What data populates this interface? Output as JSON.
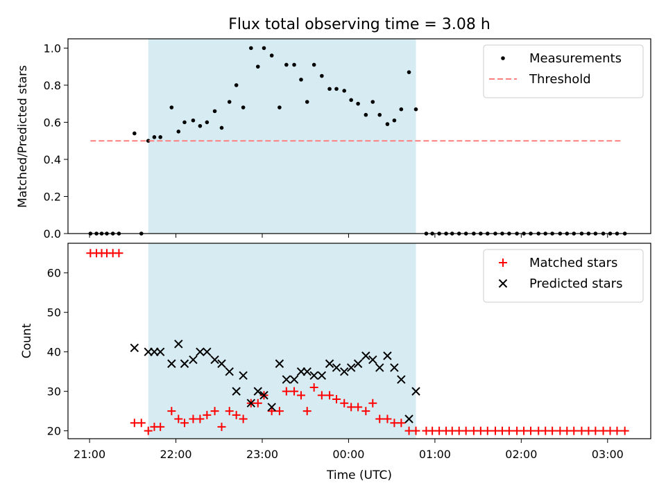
{
  "chart_data": {
    "title": "Flux total observing time = 3.08 h",
    "xlabel": "Time (UTC)",
    "x_unit": "hours",
    "xlim": [
      20.75,
      27.5
    ],
    "xticks": [
      {
        "value": 21,
        "label": "21:00"
      },
      {
        "value": 22,
        "label": "22:00"
      },
      {
        "value": 23,
        "label": "23:00"
      },
      {
        "value": 24,
        "label": "00:00"
      },
      {
        "value": 25,
        "label": "01:00"
      },
      {
        "value": 26,
        "label": "02:00"
      },
      {
        "value": 27,
        "label": "03:00"
      }
    ],
    "observing_window": {
      "start": 21.68,
      "end": 24.78,
      "color": "#add8e6"
    },
    "panels": [
      {
        "type": "scatter",
        "ylabel": "Matched/Predicted stars",
        "ylim": [
          0,
          1.05
        ],
        "yticks": [
          {
            "value": 0,
            "label": "0.0"
          },
          {
            "value": 0.2,
            "label": "0.2"
          },
          {
            "value": 0.4,
            "label": "0.4"
          },
          {
            "value": 0.6,
            "label": "0.6"
          },
          {
            "value": 0.8,
            "label": "0.8"
          },
          {
            "value": 1.0,
            "label": "1.0"
          }
        ],
        "legend_position": "top-right",
        "series": [
          {
            "name": "Measurements",
            "marker": "dot",
            "color": "#000000",
            "x": [
              21.01,
              21.08,
              21.14,
              21.2,
              21.27,
              21.34,
              21.52,
              21.6,
              21.68,
              21.75,
              21.82,
              21.95,
              22.03,
              22.1,
              22.2,
              22.28,
              22.36,
              22.45,
              22.53,
              22.62,
              22.7,
              22.78,
              22.87,
              22.95,
              23.02,
              23.11,
              23.2,
              23.28,
              23.37,
              23.45,
              23.52,
              23.6,
              23.69,
              23.78,
              23.86,
              23.95,
              24.03,
              24.11,
              24.2,
              24.28,
              24.36,
              24.45,
              24.53,
              24.61,
              24.7,
              24.78,
              24.9,
              24.97,
              25.05,
              25.13,
              25.2,
              25.28,
              25.36,
              25.45,
              25.53,
              25.61,
              25.7,
              25.78,
              25.86,
              25.95,
              26.03,
              26.11,
              26.2,
              26.28,
              26.36,
              26.45,
              26.53,
              26.61,
              26.7,
              26.78,
              26.86,
              26.95,
              27.03,
              27.11,
              27.2
            ],
            "y": [
              0,
              0,
              0,
              0,
              0,
              0,
              0.54,
              0,
              0.5,
              0.52,
              0.52,
              0.68,
              0.55,
              0.6,
              0.61,
              0.58,
              0.6,
              0.66,
              0.57,
              0.71,
              0.8,
              0.68,
              1.0,
              0.9,
              1.0,
              0.96,
              0.68,
              0.91,
              0.91,
              0.83,
              0.71,
              0.91,
              0.85,
              0.78,
              0.78,
              0.77,
              0.72,
              0.7,
              0.64,
              0.71,
              0.64,
              0.59,
              0.61,
              0.67,
              0.87,
              0.67,
              0,
              0,
              0,
              0,
              0,
              0,
              0,
              0,
              0,
              0,
              0,
              0,
              0,
              0,
              0,
              0,
              0,
              0,
              0,
              0,
              0,
              0,
              0,
              0,
              0,
              0,
              0,
              0,
              0
            ]
          },
          {
            "name": "Threshold",
            "marker": "dashed-line",
            "color": "#ff7f7f",
            "x": [
              21.01,
              27.17
            ],
            "y": [
              0.5,
              0.5
            ]
          }
        ]
      },
      {
        "type": "scatter",
        "ylabel": "Count",
        "ylim": [
          18,
          67.5
        ],
        "yticks": [
          {
            "value": 20,
            "label": "20"
          },
          {
            "value": 30,
            "label": "30"
          },
          {
            "value": 40,
            "label": "40"
          },
          {
            "value": 50,
            "label": "50"
          },
          {
            "value": 60,
            "label": "60"
          }
        ],
        "legend_position": "top-right",
        "series": [
          {
            "name": "Matched stars",
            "marker": "plus",
            "color": "#ff0000",
            "x": [
              21.01,
              21.08,
              21.14,
              21.2,
              21.27,
              21.34,
              21.52,
              21.6,
              21.68,
              21.75,
              21.82,
              21.95,
              22.03,
              22.1,
              22.2,
              22.28,
              22.36,
              22.45,
              22.53,
              22.62,
              22.7,
              22.78,
              22.87,
              22.95,
              23.02,
              23.11,
              23.2,
              23.28,
              23.37,
              23.45,
              23.52,
              23.6,
              23.69,
              23.78,
              23.86,
              23.95,
              24.03,
              24.11,
              24.2,
              24.28,
              24.36,
              24.45,
              24.53,
              24.61,
              24.7,
              24.78,
              24.9,
              24.97,
              25.05,
              25.13,
              25.2,
              25.28,
              25.36,
              25.45,
              25.53,
              25.61,
              25.7,
              25.78,
              25.86,
              25.95,
              26.03,
              26.11,
              26.2,
              26.28,
              26.36,
              26.45,
              26.53,
              26.61,
              26.7,
              26.78,
              26.86,
              26.95,
              27.03,
              27.11,
              27.2
            ],
            "y": [
              65,
              65,
              65,
              65,
              65,
              65,
              22,
              22,
              20,
              21,
              21,
              25,
              23,
              22,
              23,
              23,
              24,
              25,
              21,
              25,
              24,
              23,
              27,
              27,
              29,
              25,
              25,
              30,
              30,
              29,
              25,
              31,
              29,
              29,
              28,
              27,
              26,
              26,
              25,
              27,
              23,
              23,
              22,
              22,
              20,
              20,
              20,
              20,
              20,
              20,
              20,
              20,
              20,
              20,
              20,
              20,
              20,
              20,
              20,
              20,
              20,
              20,
              20,
              20,
              20,
              20,
              20,
              20,
              20,
              20,
              20,
              20,
              20,
              20,
              20
            ]
          },
          {
            "name": "Predicted stars",
            "marker": "x",
            "color": "#000000",
            "x": [
              21.52,
              21.68,
              21.75,
              21.82,
              21.95,
              22.03,
              22.1,
              22.2,
              22.28,
              22.36,
              22.45,
              22.53,
              22.62,
              22.7,
              22.78,
              22.87,
              22.95,
              23.02,
              23.11,
              23.2,
              23.28,
              23.37,
              23.45,
              23.52,
              23.6,
              23.69,
              23.78,
              23.86,
              23.95,
              24.03,
              24.11,
              24.2,
              24.28,
              24.36,
              24.45,
              24.53,
              24.61,
              24.7,
              24.78
            ],
            "y": [
              41,
              40,
              40,
              40,
              37,
              42,
              37,
              38,
              40,
              40,
              38,
              37,
              35,
              30,
              34,
              27,
              30,
              29,
              26,
              37,
              33,
              33,
              35,
              35,
              34,
              34,
              37,
              36,
              35,
              36,
              37,
              39,
              38,
              36,
              39,
              36,
              33,
              23,
              30
            ]
          }
        ]
      }
    ]
  }
}
